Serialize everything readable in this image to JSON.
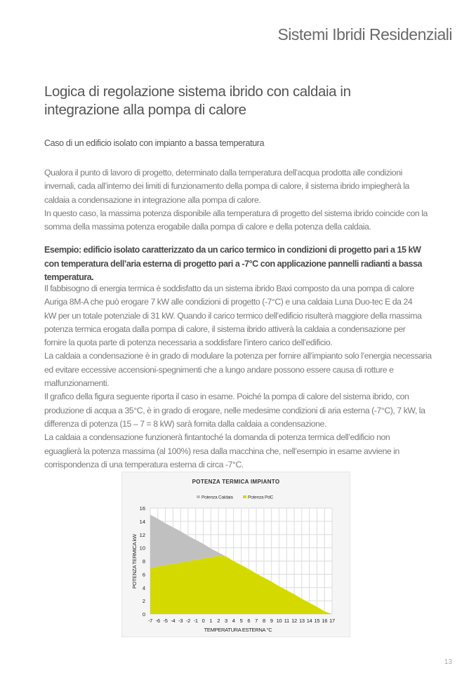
{
  "header": {
    "section_title": "Sistemi Ibridi Residenziali"
  },
  "title": "Logica di regolazione sistema ibrido con caldaia in integrazione alla pompa di calore",
  "subtitle": "Caso di un edificio isolato con impianto a bassa temperatura",
  "paragraph1": [
    "Qualora il punto di lavoro di progetto, determinato dalla temperatura dell’acqua prodotta alle condizioni",
    "invernali, cada all’interno dei limiti di funzionamento della pompa di calore, il sistema ibrido impiegherà la",
    "caldaia a condensazione in integrazione alla pompa di calore.",
    "In questo caso, la massima potenza disponibile alla temperatura di progetto del sistema ibrido coincide con la",
    "somma della massima potenza erogabile dalla pompa di calore e della potenza della caldaia."
  ],
  "example_heading": [
    "Esempio: edificio isolato caratterizzato da un carico termico in condizioni di progetto pari a 15 kW",
    "con temperatura dell’aria esterna di progetto pari a -7°C con applicazione pannelli radianti a bassa",
    "temperatura."
  ],
  "paragraph2": [
    "Il fabbisogno di energia termica è soddisfatto da un sistema ibrido Baxi composto da una pompa di calore",
    "Auriga 8M-A che può erogare 7 kW alle condizioni di progetto (-7°C) e una caldaia Luna Duo-tec E da 24",
    "kW per un totale potenziale di 31 kW. Quando il carico termico dell’edificio risulterà maggiore della massima",
    "potenza termica erogata dalla pompa di calore, il sistema ibrido attiverà la caldaia a condensazione per",
    "fornire la quota parte di potenza necessaria a soddisfare l’intero carico dell’edificio.",
    "La caldaia a condensazione è in grado di modulare la potenza per fornire all’impianto solo l’energia necessaria",
    "ed evitare eccessive accensioni-spegnimenti che a lungo andare possono essere causa di rotture e",
    "malfunzionamenti.",
    "Il grafico della figura seguente riporta il caso in esame. Poiché la pompa di calore del sistema ibrido, con",
    "produzione di acqua a 35°C, è in grado di erogare, nelle medesime condizioni di aria esterna (-7°C), 7 kW, la",
    "differenza di potenza (15 – 7 = 8 kW) sarà fornita dalla caldaia a condensazione.",
    "La caldaia a condensazione funzionerà fintantoché la domanda di potenza termica dell’edificio non",
    "eguaglierà la potenza massima (al 100%) resa dalla macchina che, nell’esempio in esame avviene in",
    "corrispondenza di una temperatura esterna di circa -7°C."
  ],
  "chart_data": {
    "type": "area",
    "stacked": true,
    "title": "POTENZA TERMICA IMPIANTO",
    "xlabel": "TEMPERATURA ESTERNA °C",
    "ylabel": "POTENZA TERMICA kW",
    "x": [
      -7,
      -6,
      -5,
      -4,
      -3,
      -2,
      -1,
      0,
      1,
      2,
      3,
      4,
      5,
      6,
      7,
      8,
      9,
      10,
      11,
      12,
      13,
      14,
      15,
      16,
      17
    ],
    "xlim": [
      -7,
      17
    ],
    "ylim": [
      0,
      16
    ],
    "yticks": [
      0,
      2,
      4,
      6,
      8,
      10,
      12,
      14,
      16
    ],
    "grid": true,
    "legend": "top",
    "series": [
      {
        "name": "Potenza PdC",
        "color": "#d4d900",
        "values": [
          7.0,
          7.2,
          7.4,
          7.6,
          7.8,
          8.0,
          8.2,
          8.4,
          8.6,
          8.8,
          8.7,
          8.0,
          7.4,
          6.8,
          6.1,
          5.5,
          4.9,
          4.2,
          3.6,
          3.0,
          2.3,
          1.7,
          1.1,
          0.4,
          0
        ]
      },
      {
        "name": "Potenza Caldaia",
        "color": "#c0c0c0",
        "values": [
          8.0,
          7.2,
          6.3,
          5.5,
          4.7,
          3.8,
          3.0,
          2.2,
          1.3,
          0.5,
          0,
          0,
          0,
          0,
          0,
          0,
          0,
          0,
          0,
          0,
          0,
          0,
          0,
          0,
          0
        ]
      }
    ],
    "legend_order": [
      "Potenza Caldaia",
      "Potenza PdC"
    ]
  },
  "page_number": "13"
}
